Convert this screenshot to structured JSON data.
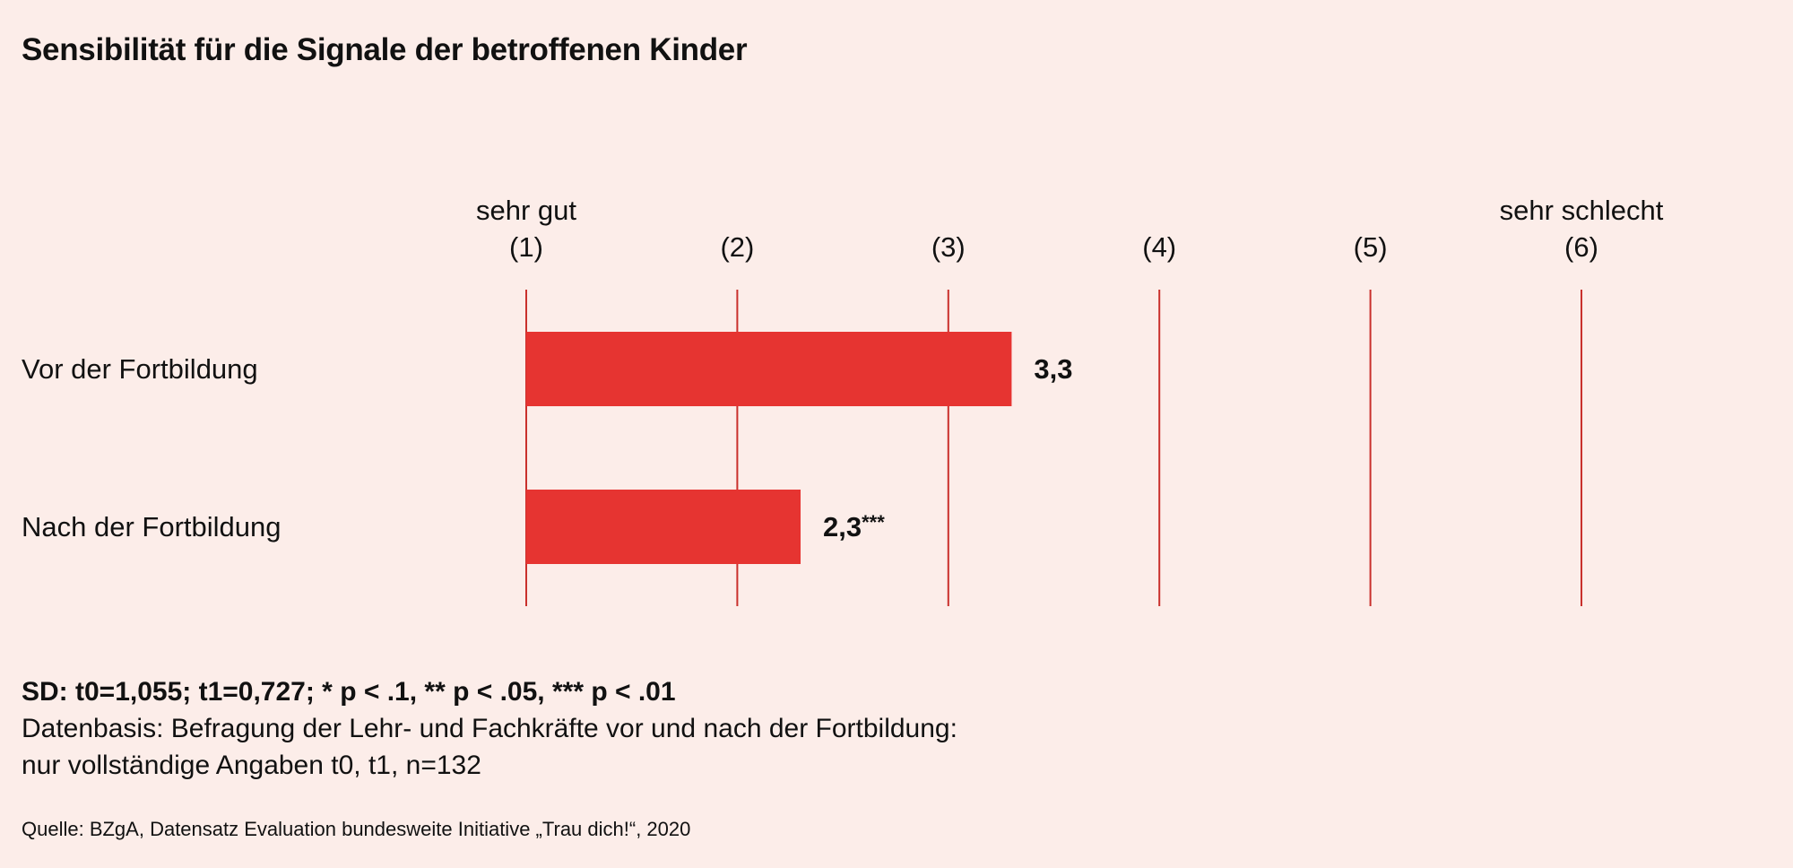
{
  "title": "Sensibilität für die Signale der betroffenen Kinder",
  "chart_data": {
    "type": "bar",
    "orientation": "horizontal",
    "title": "Sensibilität für die Signale der betroffenen Kinder",
    "categories": [
      "Vor der Fortbildung",
      "Nach der Fortbildung"
    ],
    "values": [
      3.3,
      2.3
    ],
    "value_labels": [
      "3,3",
      "2,3"
    ],
    "value_suffixes": [
      "",
      "***"
    ],
    "xlim": [
      1,
      6
    ],
    "ticks": [
      {
        "value": 1,
        "label": "(1)",
        "sublabel": "sehr gut"
      },
      {
        "value": 2,
        "label": "(2)",
        "sublabel": ""
      },
      {
        "value": 3,
        "label": "(3)",
        "sublabel": ""
      },
      {
        "value": 4,
        "label": "(4)",
        "sublabel": ""
      },
      {
        "value": 5,
        "label": "(5)",
        "sublabel": ""
      },
      {
        "value": 6,
        "label": "(6)",
        "sublabel": "sehr schlecht"
      }
    ],
    "grid": true,
    "colors": {
      "bar": "#e63431",
      "grid": "#c9302c",
      "background": "#fcede9"
    }
  },
  "notes": {
    "sd": "SD: t0=1,055; t1=0,727; * p < .1, ** p < .05, *** p < .01",
    "line1": "Datenbasis: Befragung der Lehr- und Fachkräfte vor und nach der Fortbildung:",
    "line2": "nur vollständige Angaben t0, t1, n=132"
  },
  "source": "Quelle: BZgA, Datensatz Evaluation bundesweite Initiative „Trau dich!“, 2020"
}
